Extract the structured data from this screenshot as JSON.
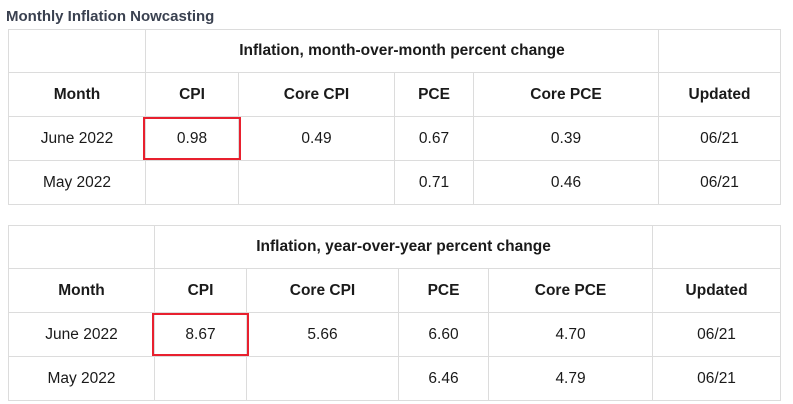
{
  "page_title": "Monthly Inflation Nowcasting",
  "colors": {
    "highlight": "#e8202e",
    "title": "#3a4150",
    "border": "#dcdcdc"
  },
  "tables": [
    {
      "caption": "Inflation, month-over-month percent change",
      "headers": [
        "Month",
        "CPI",
        "Core CPI",
        "PCE",
        "Core PCE",
        "Updated"
      ],
      "rows": [
        [
          "June 2022",
          "0.98",
          "0.49",
          "0.67",
          "0.39",
          "06/21"
        ],
        [
          "May 2022",
          "",
          "",
          "0.71",
          "0.46",
          "06/21"
        ]
      ],
      "highlighted_cell": "rows.0.1"
    },
    {
      "caption": "Inflation, year-over-year percent change",
      "headers": [
        "Month",
        "CPI",
        "Core CPI",
        "PCE",
        "Core PCE",
        "Updated"
      ],
      "rows": [
        [
          "June 2022",
          "8.67",
          "5.66",
          "6.60",
          "4.70",
          "06/21"
        ],
        [
          "May 2022",
          "",
          "",
          "6.46",
          "4.79",
          "06/21"
        ]
      ],
      "highlighted_cell": "rows.0.1"
    }
  ]
}
